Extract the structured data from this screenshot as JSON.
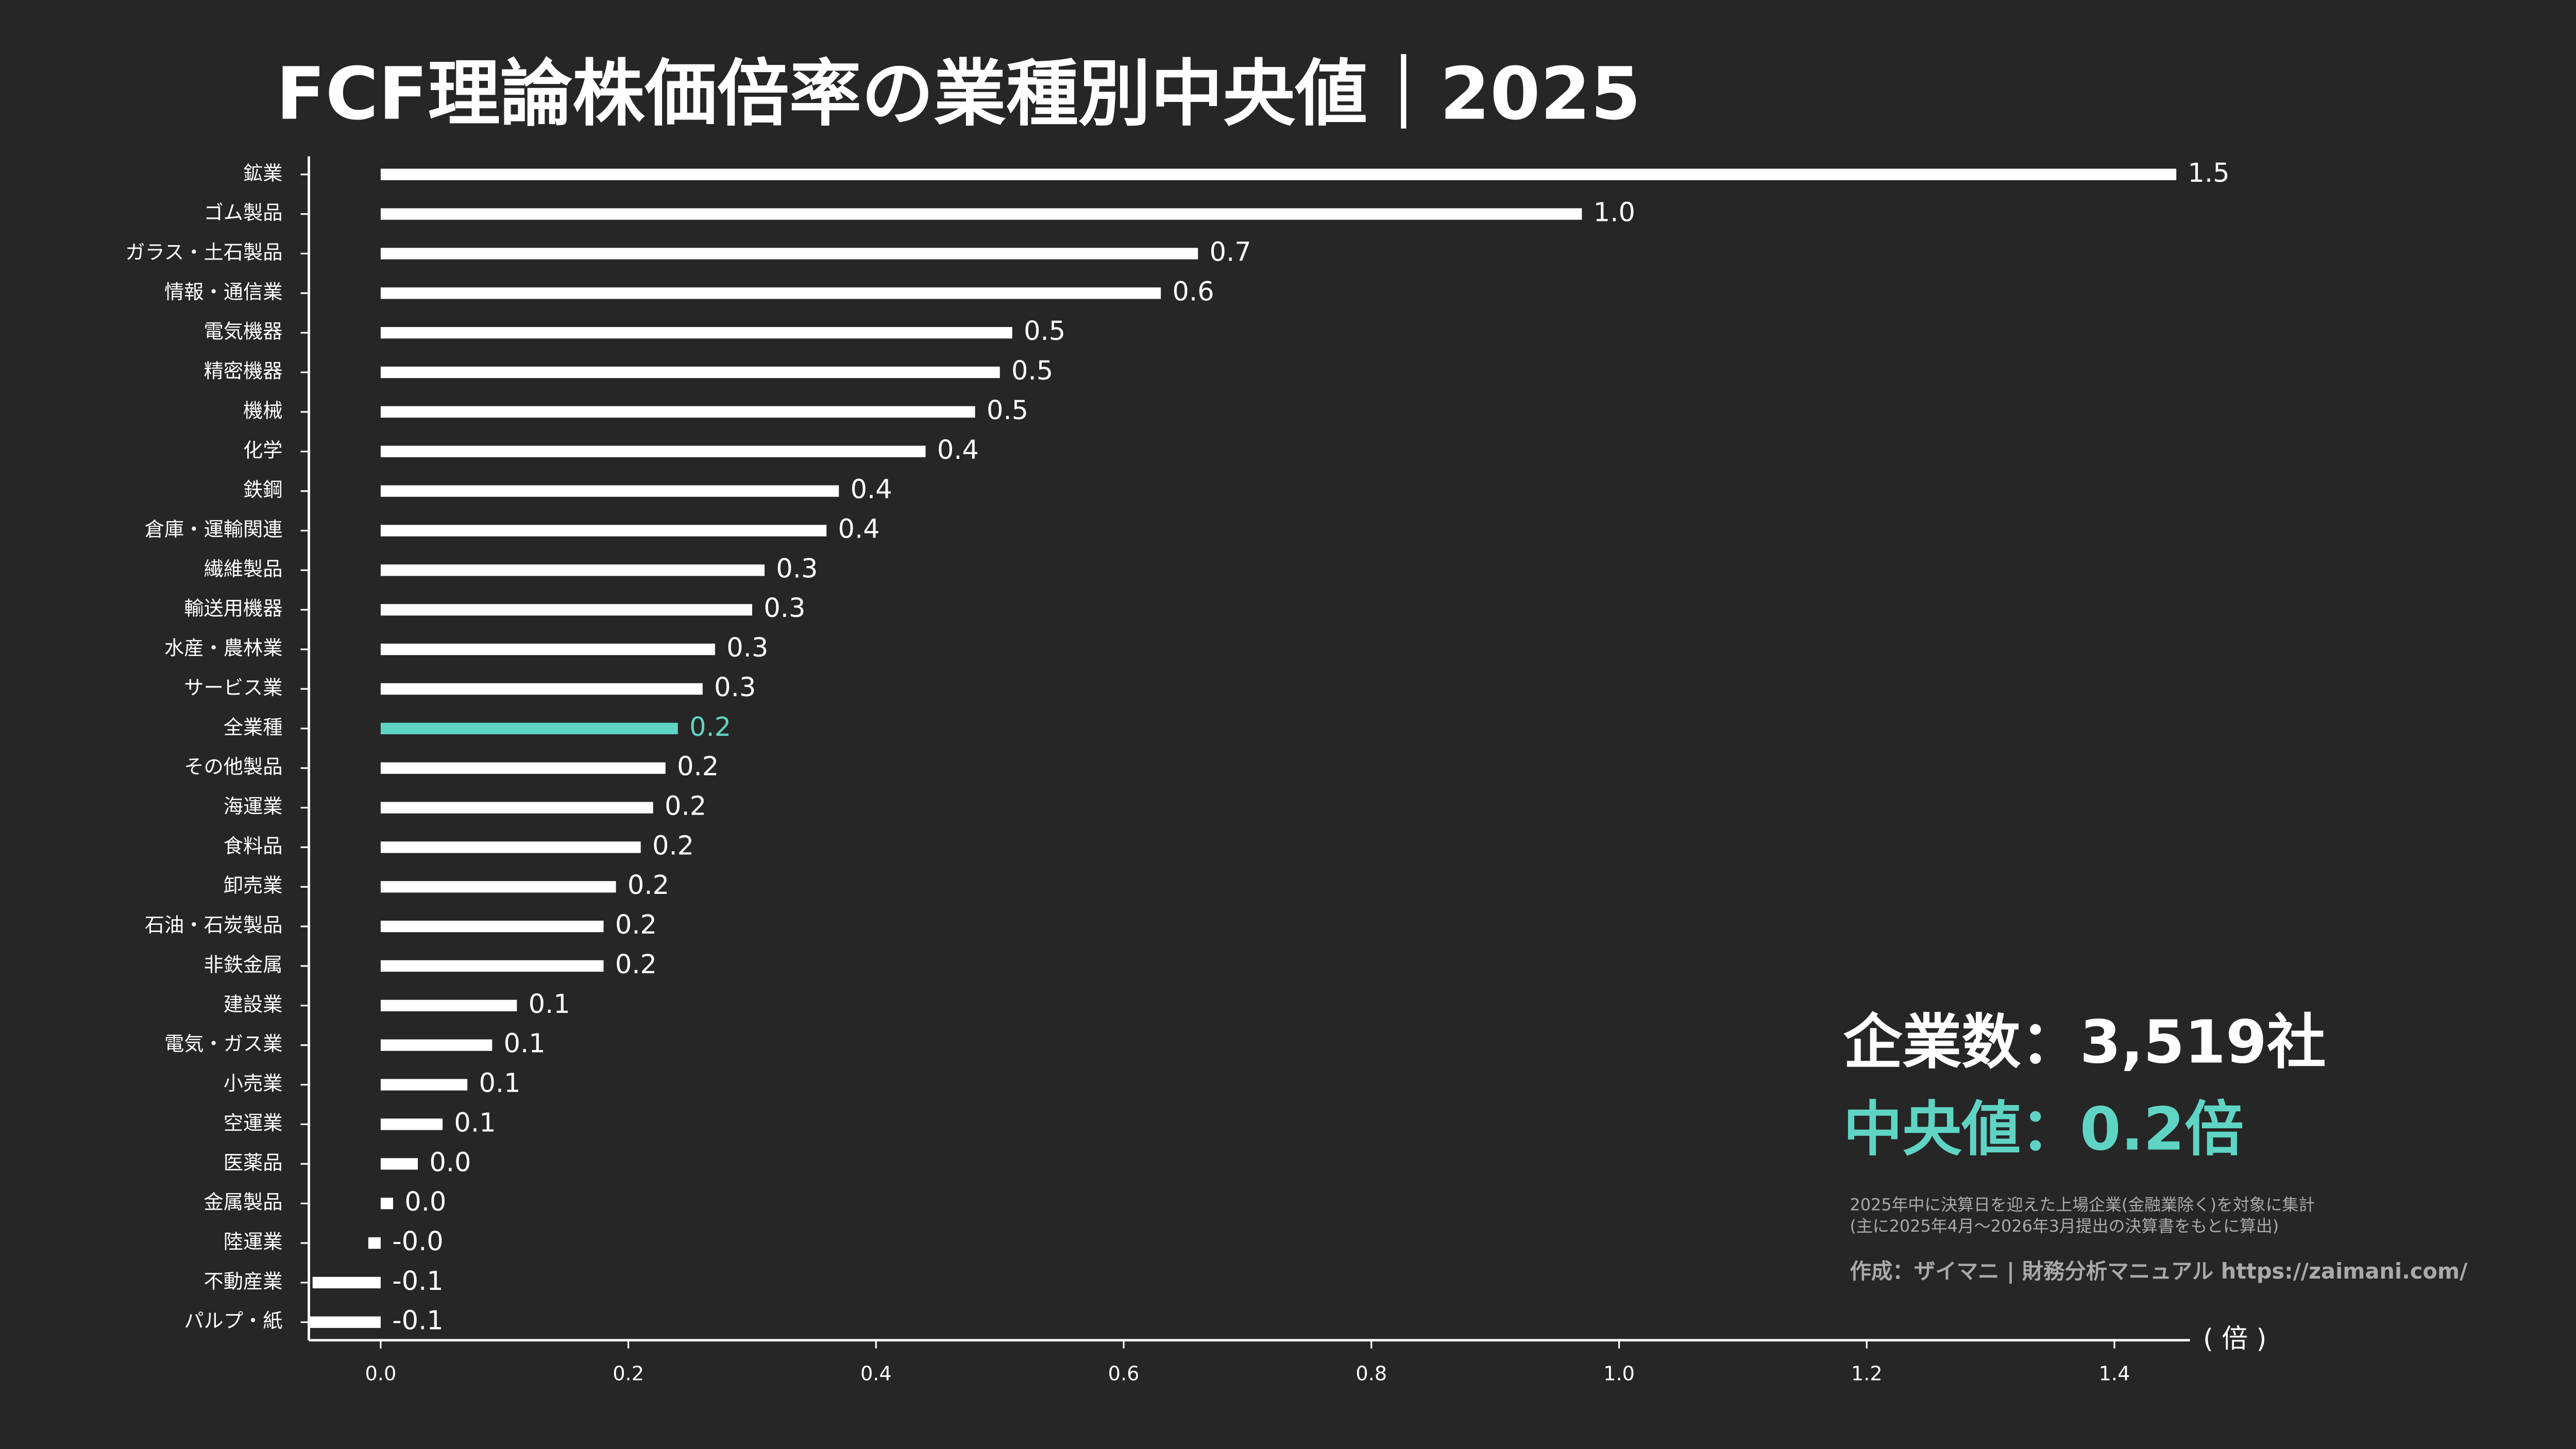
{
  "chart_data": {
    "type": "barh",
    "title": "FCF理論株価倍率の業種別中央値｜2025",
    "x_label": "( 倍 )",
    "categories": [
      "鉱業",
      "ゴム製品",
      "ガラス・土石製品",
      "情報・通信業",
      "電気機器",
      "精密機器",
      "機械",
      "化学",
      "鉄鋼",
      "倉庫・運輸関連",
      "繊維製品",
      "輸送用機器",
      "水産・農林業",
      "サービス業",
      "全業種",
      "その他製品",
      "海運業",
      "食料品",
      "卸売業",
      "石油・石炭製品",
      "非鉄金属",
      "建設業",
      "電気・ガス業",
      "小売業",
      "空運業",
      "医薬品",
      "金属製品",
      "陸運業",
      "不動産業",
      "パルプ・紙"
    ],
    "values": [
      1.45,
      0.97,
      0.66,
      0.63,
      0.51,
      0.5,
      0.48,
      0.44,
      0.37,
      0.36,
      0.31,
      0.3,
      0.27,
      0.26,
      0.24,
      0.23,
      0.22,
      0.21,
      0.19,
      0.18,
      0.18,
      0.11,
      0.09,
      0.07,
      0.05,
      0.03,
      0.01,
      -0.01,
      -0.055,
      -0.057
    ],
    "value_labels": [
      "1.5",
      "1.0",
      "0.7",
      "0.6",
      "0.5",
      "0.5",
      "0.5",
      "0.4",
      "0.4",
      "0.4",
      "0.3",
      "0.3",
      "0.3",
      "0.3",
      "0.2",
      "0.2",
      "0.2",
      "0.2",
      "0.2",
      "0.2",
      "0.2",
      "0.1",
      "0.1",
      "0.1",
      "0.1",
      "0.0",
      "0.0",
      "-0.0",
      "-0.1",
      "-0.1"
    ],
    "bar_colors": [
      "#ffffff",
      "#ffffff",
      "#ffffff",
      "#ffffff",
      "#ffffff",
      "#ffffff",
      "#ffffff",
      "#ffffff",
      "#ffffff",
      "#ffffff",
      "#ffffff",
      "#ffffff",
      "#ffffff",
      "#ffffff",
      "#5fd4c4",
      "#ffffff",
      "#ffffff",
      "#ffffff",
      "#ffffff",
      "#ffffff",
      "#ffffff",
      "#ffffff",
      "#ffffff",
      "#ffffff",
      "#ffffff",
      "#ffffff",
      "#ffffff",
      "#ffffff",
      "#ffffff",
      "#ffffff"
    ],
    "xlim": [
      -0.058,
      1.461
    ],
    "xticks": [
      {
        "value": 0,
        "label": "0.0"
      },
      0.2,
      0.4,
      0.6,
      0.8,
      {
        "value": 1,
        "label": "1.0"
      },
      1.2,
      1.4
    ],
    "annotations": {
      "companies": "企業数：3,519社",
      "median": "中央値：0.2倍",
      "note1": "2025年中に決算日を迎えた上場企業(金融業除く)を対象に集計",
      "note2": "(主に2025年4月～2026年3月提出の決算書をもとに算出)",
      "credit": "作成：ザイマニ | 財務分析マニュアル https://zaimani.com/"
    }
  }
}
